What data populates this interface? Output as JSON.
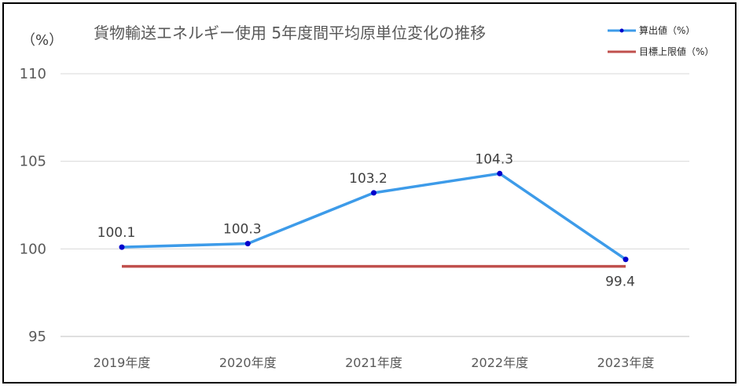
{
  "chart_data": {
    "type": "line",
    "title": "貨物輸送エネルギー使用 5年度間平均原単位変化の推移",
    "unit_label": "（%）",
    "categories": [
      "2019年度",
      "2020年度",
      "2021年度",
      "2022年度",
      "2023年度"
    ],
    "y_ticks": [
      "95",
      "100",
      "105",
      "110"
    ],
    "ylim": [
      95,
      110
    ],
    "grid": true,
    "legend_position": "top-right",
    "series": [
      {
        "name": "算出値（%）",
        "values": [
          100.1,
          100.3,
          103.2,
          104.3,
          99.4
        ],
        "data_labels": [
          "100.1",
          "100.3",
          "103.2",
          "104.3",
          "99.4"
        ],
        "color": "#3d9be9",
        "marker_color": "#0000cc"
      },
      {
        "name": "目標上限値（%）",
        "values": [
          99,
          99,
          99,
          99,
          99
        ],
        "color": "#c0504d"
      }
    ]
  }
}
